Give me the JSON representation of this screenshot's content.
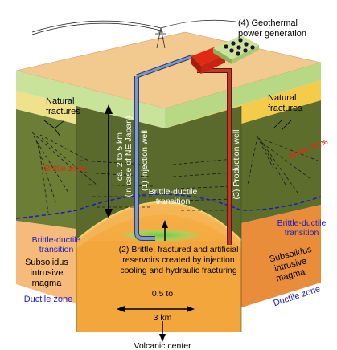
{
  "labels": {
    "power_generation_line1": "(4) Geothermal",
    "power_generation_line2": "power generation",
    "natural_fractures_left_line1": "Natural",
    "natural_fractures_left_line2": "fractures",
    "natural_fractures_right_line1": "Natural",
    "natural_fractures_right_line2": "fractures",
    "brittle_zone_left": "Brittle zone",
    "brittle_zone_right": "Brittle zone",
    "depth_line1": "ca. 2 to 5 km",
    "depth_line2": "(in case of NE Japan)",
    "injection_well": "(1) Injection well",
    "production_well": "(3) Production well",
    "bdt_center_line1": "Brittle-ductile",
    "bdt_center_line2": "transition",
    "bdt_left_line1": "Brittle-ductile",
    "bdt_left_line2": "transition",
    "bdt_right_line1": "Brittle-ductile",
    "bdt_right_line2": "transition",
    "reservoir_line1": "(2) Brittle, fractured and artificial",
    "reservoir_line2": "reservoirs created by injection",
    "reservoir_line3": "cooling and hydraulic fracturing",
    "magma_left_line1": "Subsolidus",
    "magma_left_line2": "intrusive",
    "magma_left_line3": "magma",
    "magma_right_line1": "Subsolidus",
    "magma_right_line2": "intrusive",
    "magma_right_line3": "magma",
    "ductile_zone_left": "Ductile zone",
    "ductile_zone_right": "Ductile zone",
    "distance_line1": "0.5 to",
    "distance_line2": "3 km",
    "volcanic_center": "Volcanic center"
  },
  "colors": {
    "top_surface": "#f2c98e",
    "soil_green": "#c9e49a",
    "yellow_layer": "#f4cc4a",
    "brittle_left": "#6c7d36",
    "brittle_right": "#5d6e2c",
    "ductile_left": "#f6ba7a",
    "ductile_right": "#e98d3a",
    "orange_magma": "#f3a63c",
    "injection_pipe": "#7f98cc",
    "production_pipe": "#c33a1e",
    "reservoir_glow": "#6fd34a",
    "blue_text": "#1a1ac9",
    "red_text": "#e02a12"
  },
  "icons": [
    "power-plant-icon",
    "transmission-tower-icon",
    "cooling-tower-icon"
  ]
}
